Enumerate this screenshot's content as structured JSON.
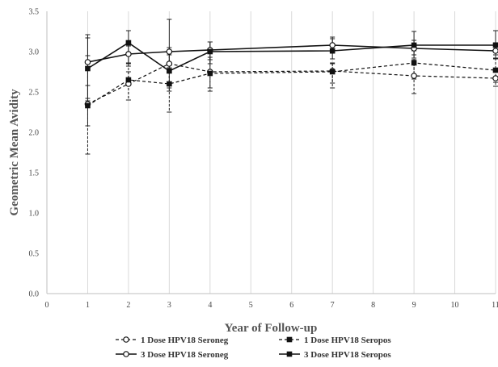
{
  "chart_data": {
    "type": "line",
    "title": "",
    "xlabel": "Year of Follow-up",
    "ylabel": "Geometric Mean Avidity",
    "xlim": [
      0,
      11
    ],
    "ylim": [
      0,
      3.5
    ],
    "x_ticks": [
      "0",
      "1",
      "2",
      "3",
      "4",
      "5",
      "6",
      "7",
      "8",
      "9",
      "10",
      "11"
    ],
    "y_ticks": [
      "0.0",
      "0.5",
      "1.0",
      "1.5",
      "2.0",
      "2.5",
      "3.0",
      "3.5"
    ],
    "grid": "vertical",
    "legend_position": "bottom",
    "series": [
      {
        "name": "1 Dose HPV18 Seroneg",
        "line": "dashed",
        "marker": "open-circle",
        "x": [
          1,
          2,
          3,
          4,
          7,
          9,
          11
        ],
        "y": [
          2.35,
          2.6,
          2.85,
          2.75,
          2.76,
          2.7,
          2.67
        ],
        "err_lo": [
          0.62,
          0.2,
          0.3,
          0.2,
          0.15,
          0.22,
          0.1
        ],
        "err_hi": [
          0.6,
          0.15,
          0.2,
          0.15,
          0.1,
          0.2,
          0.1
        ]
      },
      {
        "name": "1 Dose HPV18 Seropos",
        "line": "dashed",
        "marker": "filled-square",
        "x": [
          1,
          2,
          3,
          4,
          7,
          9,
          11
        ],
        "y": [
          2.33,
          2.65,
          2.6,
          2.73,
          2.75,
          2.86,
          2.77
        ],
        "err_lo": [
          0.25,
          0.25,
          0.35,
          0.22,
          0.2,
          0.2,
          0.15
        ],
        "err_hi": [
          0.25,
          0.2,
          0.2,
          0.2,
          0.1,
          0.15,
          0.15
        ]
      },
      {
        "name": "3 Dose HPV18 Seroneg",
        "line": "solid",
        "marker": "open-circle",
        "x": [
          1,
          2,
          3,
          4,
          7,
          9,
          11
        ],
        "y": [
          2.87,
          2.97,
          3.0,
          3.02,
          3.08,
          3.04,
          3.01
        ],
        "err_lo": [
          0.45,
          0.15,
          0.25,
          0.12,
          0.1,
          0.12,
          0.1
        ],
        "err_hi": [
          0.3,
          0.1,
          0.4,
          0.1,
          0.1,
          0.1,
          0.1
        ]
      },
      {
        "name": "3 Dose HPV18 Seropos",
        "line": "solid",
        "marker": "filled-square",
        "x": [
          1,
          2,
          3,
          4,
          7,
          9,
          11
        ],
        "y": [
          2.79,
          3.11,
          2.76,
          3.0,
          3.01,
          3.08,
          3.08
        ],
        "err_lo": [
          0.4,
          0.25,
          0.25,
          0.15,
          0.1,
          0.12,
          0.12
        ],
        "err_hi": [
          0.42,
          0.15,
          0.2,
          0.12,
          0.15,
          0.17,
          0.18
        ]
      }
    ]
  }
}
